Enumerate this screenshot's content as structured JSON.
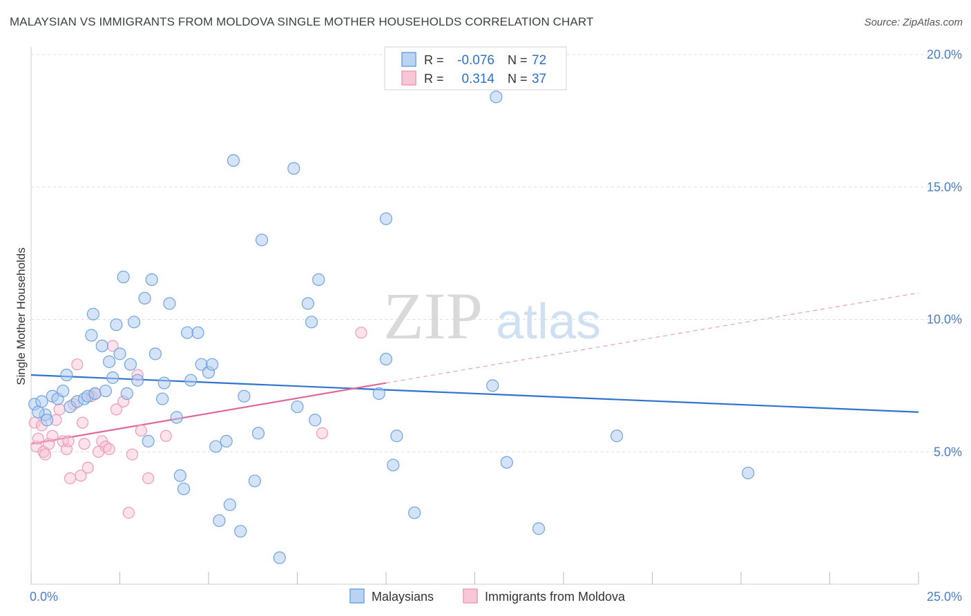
{
  "title": "MALAYSIAN VS IMMIGRANTS FROM MOLDOVA SINGLE MOTHER HOUSEHOLDS CORRELATION CHART",
  "source": "Source: ZipAtlas.com",
  "watermark": {
    "zip": "ZIP",
    "atlas": "atlas"
  },
  "colors": {
    "blue": "#6fa3e0",
    "blue_line": "#2f73cf",
    "pink": "#ef9ab8",
    "pink_line": "#e0679a",
    "axis_text": "#4a7cc7"
  },
  "legend_box": {
    "rows": [
      {
        "r_label": "R =",
        "r_value": "-0.076",
        "n_label": "N =",
        "n_value": "72"
      },
      {
        "r_label": "R =",
        "r_value": "0.314",
        "n_label": "N =",
        "n_value": "37"
      }
    ]
  },
  "chart_data": {
    "type": "scatter",
    "title": "MALAYSIAN VS IMMIGRANTS FROM MOLDOVA SINGLE MOTHER HOUSEHOLDS CORRELATION CHART",
    "xlabel": "",
    "ylabel": "Single Mother Households",
    "xlim": [
      0,
      25
    ],
    "ylim": [
      0,
      20
    ],
    "x_tick_labels": [
      "0.0%",
      "25.0%"
    ],
    "y_ticks": [
      5,
      10,
      15,
      20
    ],
    "y_tick_labels": [
      "5.0%",
      "10.0%",
      "15.0%",
      "20.0%"
    ],
    "grid": true,
    "legend_position": "bottom",
    "series": [
      {
        "name": "Malaysians",
        "color": "#6fa3e0",
        "r": -0.076,
        "n": 72,
        "trend": {
          "x": [
            0,
            25
          ],
          "y": [
            7.9,
            6.5
          ]
        },
        "points": [
          [
            0.1,
            6.8
          ],
          [
            0.4,
            6.4
          ],
          [
            0.45,
            6.2
          ],
          [
            0.6,
            7.1
          ],
          [
            0.75,
            7.0
          ],
          [
            0.9,
            7.3
          ],
          [
            1.0,
            7.9
          ],
          [
            1.1,
            6.7
          ],
          [
            1.3,
            6.9
          ],
          [
            1.5,
            7.0
          ],
          [
            1.6,
            7.1
          ],
          [
            1.7,
            9.4
          ],
          [
            1.75,
            10.2
          ],
          [
            1.8,
            7.2
          ],
          [
            2.0,
            9.0
          ],
          [
            2.1,
            7.3
          ],
          [
            2.2,
            8.4
          ],
          [
            2.3,
            7.8
          ],
          [
            2.4,
            9.8
          ],
          [
            2.5,
            8.7
          ],
          [
            2.6,
            11.6
          ],
          [
            2.7,
            7.2
          ],
          [
            2.8,
            8.3
          ],
          [
            2.9,
            9.9
          ],
          [
            3.0,
            7.7
          ],
          [
            3.2,
            10.8
          ],
          [
            3.3,
            5.4
          ],
          [
            3.4,
            11.5
          ],
          [
            3.5,
            8.7
          ],
          [
            3.7,
            7.0
          ],
          [
            3.75,
            7.6
          ],
          [
            3.9,
            10.6
          ],
          [
            4.1,
            6.3
          ],
          [
            4.2,
            4.1
          ],
          [
            4.3,
            3.6
          ],
          [
            4.4,
            9.5
          ],
          [
            4.5,
            7.7
          ],
          [
            4.7,
            9.5
          ],
          [
            4.8,
            8.3
          ],
          [
            5.0,
            8.0
          ],
          [
            5.1,
            8.3
          ],
          [
            5.2,
            5.2
          ],
          [
            5.3,
            2.4
          ],
          [
            5.5,
            5.4
          ],
          [
            5.6,
            3.0
          ],
          [
            5.7,
            16.0
          ],
          [
            5.9,
            2.0
          ],
          [
            6.0,
            7.1
          ],
          [
            6.3,
            3.9
          ],
          [
            6.4,
            5.7
          ],
          [
            6.5,
            13.0
          ],
          [
            7.0,
            1.0
          ],
          [
            7.4,
            15.7
          ],
          [
            7.5,
            6.7
          ],
          [
            7.8,
            10.6
          ],
          [
            7.9,
            9.9
          ],
          [
            8.0,
            6.2
          ],
          [
            8.1,
            11.5
          ],
          [
            9.8,
            7.2
          ],
          [
            10.0,
            13.8
          ],
          [
            10.0,
            8.5
          ],
          [
            10.2,
            4.5
          ],
          [
            10.3,
            5.6
          ],
          [
            10.8,
            2.7
          ],
          [
            13.0,
            7.5
          ],
          [
            13.1,
            18.4
          ],
          [
            13.4,
            4.6
          ],
          [
            14.3,
            2.1
          ],
          [
            16.5,
            5.6
          ],
          [
            20.2,
            4.2
          ],
          [
            0.3,
            6.9
          ],
          [
            0.2,
            6.5
          ]
        ]
      },
      {
        "name": "Immigrants from Moldova",
        "color": "#ef9ab8",
        "r": 0.314,
        "n": 37,
        "trend_solid": {
          "x": [
            0,
            10
          ],
          "y": [
            5.3,
            7.6
          ]
        },
        "trend_dashed": {
          "x": [
            10,
            25
          ],
          "y": [
            7.6,
            11.0
          ]
        },
        "points": [
          [
            0.1,
            6.1
          ],
          [
            0.15,
            5.2
          ],
          [
            0.2,
            5.5
          ],
          [
            0.3,
            6.0
          ],
          [
            0.35,
            5.0
          ],
          [
            0.4,
            4.9
          ],
          [
            0.5,
            5.3
          ],
          [
            0.6,
            5.6
          ],
          [
            0.7,
            6.2
          ],
          [
            0.8,
            6.6
          ],
          [
            0.9,
            5.4
          ],
          [
            1.0,
            5.1
          ],
          [
            1.05,
            5.4
          ],
          [
            1.1,
            4.0
          ],
          [
            1.2,
            6.8
          ],
          [
            1.3,
            8.3
          ],
          [
            1.4,
            4.1
          ],
          [
            1.45,
            6.1
          ],
          [
            1.5,
            5.3
          ],
          [
            1.6,
            4.4
          ],
          [
            1.7,
            7.1
          ],
          [
            1.8,
            7.2
          ],
          [
            1.9,
            5.0
          ],
          [
            2.0,
            5.4
          ],
          [
            2.1,
            5.2
          ],
          [
            2.2,
            5.1
          ],
          [
            2.3,
            9.0
          ],
          [
            2.4,
            6.6
          ],
          [
            2.6,
            6.9
          ],
          [
            2.75,
            2.7
          ],
          [
            2.85,
            4.9
          ],
          [
            3.0,
            7.9
          ],
          [
            3.1,
            5.8
          ],
          [
            3.3,
            4.0
          ],
          [
            3.8,
            5.6
          ],
          [
            8.2,
            5.7
          ],
          [
            9.3,
            9.5
          ]
        ]
      }
    ]
  }
}
